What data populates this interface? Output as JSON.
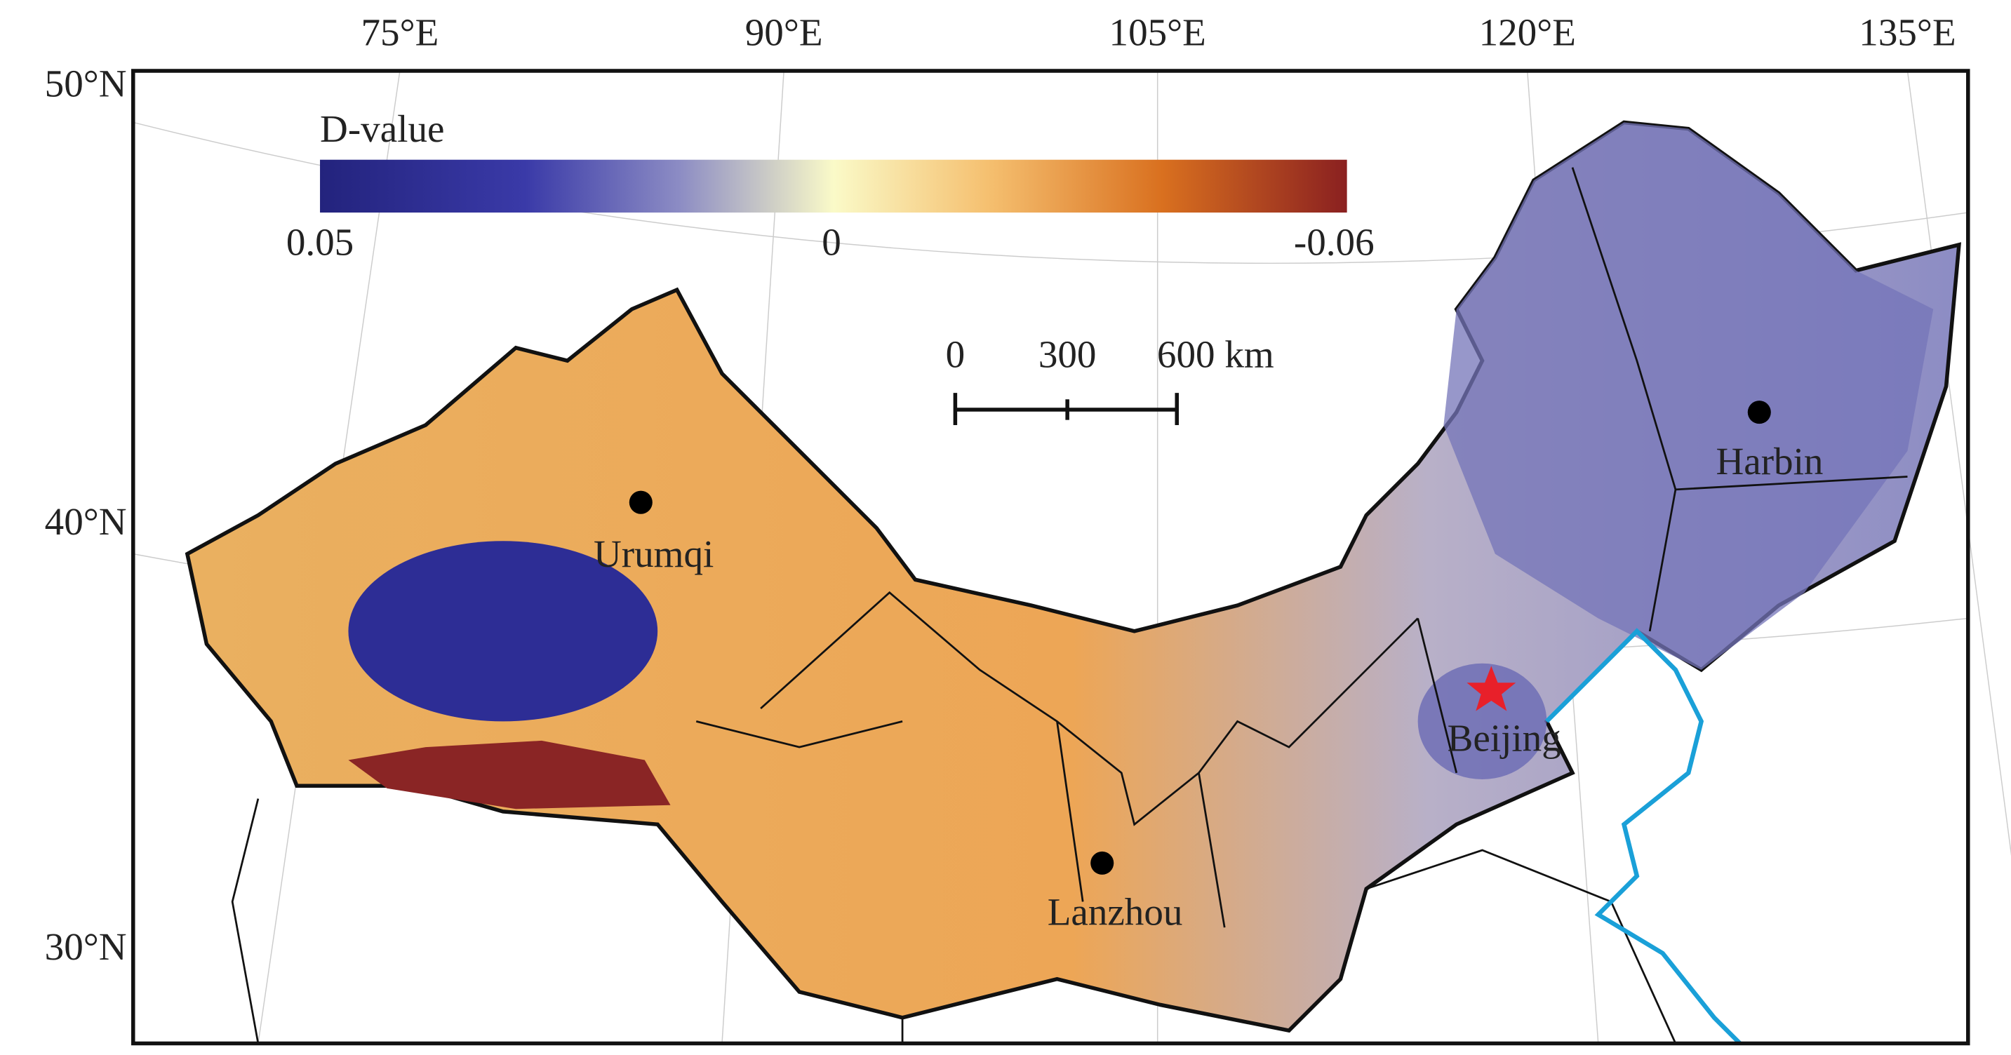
{
  "map": {
    "longitude_labels": [
      "75°E",
      "90°E",
      "105°E",
      "120°E",
      "135°E"
    ],
    "latitude_labels": [
      "50°N",
      "40°N",
      "30°N"
    ],
    "legend": {
      "title": "D-value",
      "labels": [
        "0.05",
        "0",
        "-0.06"
      ]
    },
    "scale_bar": {
      "labels": [
        "0",
        "300",
        "600 km"
      ]
    },
    "cities": [
      "Urumqi",
      "Lanzhou",
      "Harbin",
      "Beijing"
    ]
  }
}
